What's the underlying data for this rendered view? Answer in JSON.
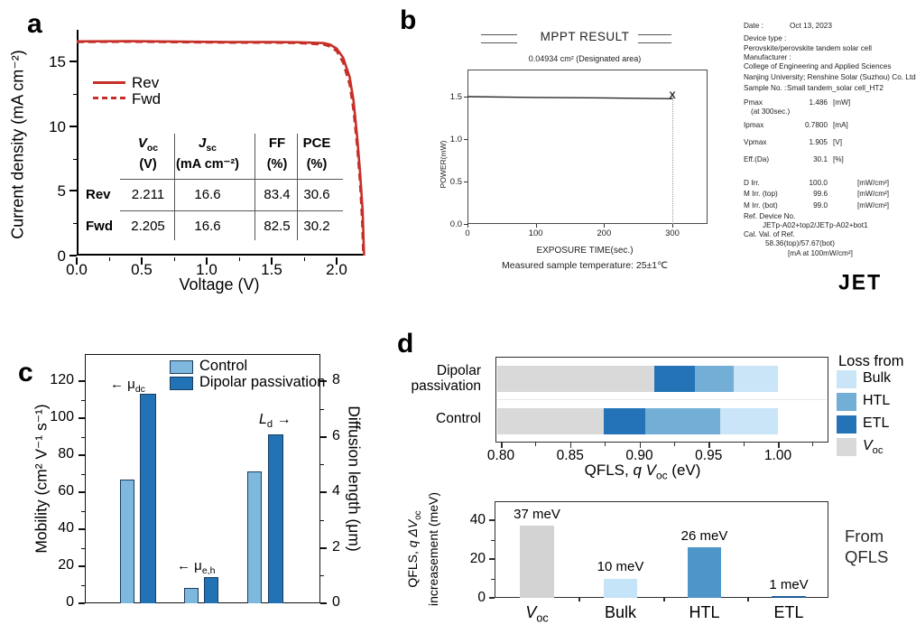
{
  "panels": {
    "a": {
      "label": "a",
      "xlabel": "Voltage (V)",
      "ylabel": "Current density (mA cm⁻²)",
      "curve_color": "#c62f28",
      "table": {
        "columns": [
          {
            "symbol": "V",
            "sub": "oc",
            "italic": true,
            "unit": "(V)"
          },
          {
            "symbol": "J",
            "sub": "sc",
            "italic": true,
            "unit": "(mA cm⁻²)"
          },
          {
            "symbol": "FF",
            "sub": "",
            "italic": false,
            "unit": "(%)"
          },
          {
            "symbol": "PCE",
            "sub": "",
            "italic": false,
            "unit": "(%)"
          }
        ],
        "rows": [
          {
            "name": "Rev",
            "values": [
              "2.211",
              "16.6",
              "83.4",
              "30.6"
            ]
          },
          {
            "name": "Fwd",
            "values": [
              "2.205",
              "16.6",
              "82.5",
              "30.2"
            ]
          }
        ]
      }
    },
    "b": {
      "label": "b",
      "title": "MPPT RESULT",
      "subtitle": "0.04934 cm² (Designated area)",
      "xlabel": "EXPOSURE TIME(sec.)",
      "ylabel": "POWER(mW)",
      "footnote": "Measured sample temperature: 25±1℃",
      "end_marker": "X",
      "logo": "JET",
      "info_lines": [
        {
          "label": "Date :",
          "value": "Oct 13, 2023"
        },
        {
          "label": "Device type :"
        },
        {
          "label": "Perovskite/perovskite tandem solar cell"
        },
        {
          "label": "Manufacturer :"
        },
        {
          "label": "College of Engineering and Applied Sciences"
        },
        {
          "label": "Nanjing University; Renshine Solar (Suzhou) Co. Ltd."
        },
        {
          "label": "Sample No. :",
          "value": "Small tandem_solar cell_HT2"
        },
        {
          "label": "Pmax",
          "value": "1.486",
          "unit": "[mW]"
        },
        {
          "label": "(at 300sec.)"
        },
        {
          "label": "Ipmax",
          "value": "0.7800",
          "unit": "[mA]"
        },
        {
          "label": "Vpmax",
          "value": "1.905",
          "unit": "[V]"
        },
        {
          "label": "Eff.(Da)",
          "value": "30.1",
          "unit": "[%]"
        },
        {
          "label": "D Irr.",
          "value": "100.0",
          "unit": "[mW/cm²]"
        },
        {
          "label": "M Irr. (top)",
          "value": "99.6",
          "unit": "[mW/cm²]"
        },
        {
          "label": "M Irr. (bot)",
          "value": "99.0",
          "unit": "[mW/cm²]"
        },
        {
          "label": "Ref. Device No."
        },
        {
          "label": "JETp-A02+top2/JETp-A02+bot1"
        },
        {
          "label": "Cal. Val. of Ref."
        },
        {
          "label": "58.36(top)/57.67(bot)"
        },
        {
          "label": "[mA at 100mW/cm²]"
        }
      ]
    },
    "c": {
      "label": "c",
      "ylabel_left": "Mobility (cm² V⁻¹ s⁻¹)",
      "ylabel_right": "Diffusion length (μm)",
      "annotations": {
        "mu_dc": {
          "arrow": "←",
          "base": "μ",
          "sub": "dc"
        },
        "mu_eh": {
          "arrow": "←",
          "base": "μ",
          "sub": "e,h"
        },
        "ld": {
          "base": "L",
          "sub": "d",
          "arrow": "→"
        }
      }
    },
    "d": {
      "label": "d",
      "top": {
        "cat_lines": [
          [
            "Dipolar",
            "passivation"
          ],
          [
            "Control"
          ]
        ],
        "xlabel": {
          "pre": "QFLS, ",
          "q": "q",
          "v": " V",
          "sub": "oc",
          "post": " (eV)"
        }
      },
      "bottom": {
        "ylabel_line1": {
          "pre": "QFLS, ",
          "ital": "q ΔV",
          "sub": "oc"
        },
        "ylabel_line2": "increasement (meV)",
        "annotation": [
          "From",
          "QFLS"
        ]
      }
    }
  },
  "chart_data": [
    {
      "id": "a-jv",
      "type": "line",
      "xlabel": "Voltage (V)",
      "ylabel": "Current density (mA cm⁻²)",
      "xlim": [
        0,
        2.22
      ],
      "ylim": [
        0,
        17.4
      ],
      "xticks": [
        0.0,
        0.5,
        1.0,
        1.5,
        2.0
      ],
      "yticks": [
        0,
        5,
        10,
        15
      ],
      "series": [
        {
          "name": "Rev",
          "style": "solid",
          "color": "#c62f28",
          "points": [
            [
              0,
              16.55
            ],
            [
              0.4,
              16.57
            ],
            [
              0.8,
              16.53
            ],
            [
              1.2,
              16.5
            ],
            [
              1.5,
              16.5
            ],
            [
              1.7,
              16.48
            ],
            [
              1.9,
              16.42
            ],
            [
              1.95,
              16.3
            ],
            [
              2.0,
              16.0
            ],
            [
              2.05,
              15.3
            ],
            [
              2.1,
              13.8
            ],
            [
              2.13,
              12.0
            ],
            [
              2.16,
              9.0
            ],
            [
              2.18,
              6.5
            ],
            [
              2.2,
              3.5
            ],
            [
              2.211,
              0
            ]
          ]
        },
        {
          "name": "Fwd",
          "style": "dashed",
          "color": "#c62f28",
          "points": [
            [
              0,
              16.5
            ],
            [
              0.4,
              16.52
            ],
            [
              0.8,
              16.48
            ],
            [
              1.2,
              16.45
            ],
            [
              1.5,
              16.45
            ],
            [
              1.7,
              16.42
            ],
            [
              1.9,
              16.3
            ],
            [
              1.95,
              16.15
            ],
            [
              2.0,
              15.8
            ],
            [
              2.05,
              14.9
            ],
            [
              2.1,
              13.2
            ],
            [
              2.13,
              11.2
            ],
            [
              2.16,
              8.2
            ],
            [
              2.18,
              5.6
            ],
            [
              2.195,
              2.8
            ],
            [
              2.205,
              0
            ]
          ]
        }
      ]
    },
    {
      "id": "b-mppt",
      "type": "line",
      "title": "MPPT RESULT",
      "subtitle": "0.04934 cm² (Designated area)",
      "xlabel": "EXPOSURE TIME(sec.)",
      "ylabel": "POWER(mW)",
      "xlim": [
        0,
        350
      ],
      "ylim": [
        0,
        1.82
      ],
      "xticks": [
        0,
        100,
        200,
        300
      ],
      "yticks": [
        0.0,
        0.5,
        1.0,
        1.5
      ],
      "series": [
        {
          "name": "POWER",
          "color": "#2b2b2b",
          "points": [
            [
              0,
              1.5
            ],
            [
              100,
              1.49
            ],
            [
              200,
              1.485
            ],
            [
              300,
              1.475
            ]
          ]
        }
      ],
      "end_marker_x": 300,
      "end_marker": "X"
    },
    {
      "id": "c-mobility",
      "type": "bar",
      "categories": [
        "μ_dc",
        "μ_e,h",
        "L_d"
      ],
      "ylabel_left": "Mobility (cm² V⁻¹ s⁻¹)",
      "ylabel_right": "Diffusion length (μm)",
      "ylim_left": [
        0,
        135
      ],
      "yticks_left": [
        0,
        20,
        40,
        60,
        80,
        100,
        120
      ],
      "yticks_right": [
        0,
        2,
        4,
        6,
        8
      ],
      "series": [
        {
          "name": "Control",
          "color": "#7fb8de",
          "values_left": [
            67,
            8.5,
            71
          ],
          "mobility": [
            67,
            8.5
          ],
          "diffusion_length_um": 4.7
        },
        {
          "name": "Dipolar passivation",
          "color": "#2273b6",
          "values_left": [
            113,
            14,
            91
          ],
          "mobility": [
            113,
            14
          ],
          "diffusion_length_um": 6.1
        }
      ]
    },
    {
      "id": "d-qfls-loss",
      "type": "stacked-bar-horizontal",
      "xlabel": "QFLS, q V_oc (eV)",
      "xlim": [
        0.787,
        1.036
      ],
      "xticks": [
        0.8,
        0.85,
        0.9,
        0.95,
        1.0
      ],
      "bars": [
        {
          "label": "Dipolar passivation",
          "segments": [
            {
              "name": "V_oc",
              "from": 0.8,
              "to": 0.911
            },
            {
              "name": "ETL",
              "from": 0.911,
              "to": 0.94
            },
            {
              "name": "HTL",
              "from": 0.94,
              "to": 0.968
            },
            {
              "name": "Bulk",
              "from": 0.968,
              "to": 1.0
            }
          ]
        },
        {
          "label": "Control",
          "segments": [
            {
              "name": "V_oc",
              "from": 0.8,
              "to": 0.874
            },
            {
              "name": "ETL",
              "from": 0.874,
              "to": 0.904
            },
            {
              "name": "HTL",
              "from": 0.904,
              "to": 0.958
            },
            {
              "name": "Bulk",
              "from": 0.958,
              "to": 1.0
            }
          ]
        }
      ],
      "colors": {
        "V_oc": "#d9d9d9",
        "ETL": "#2373b6",
        "HTL": "#73aed6",
        "Bulk": "#c9e5f7"
      },
      "legend": {
        "title": "Loss from",
        "items": [
          {
            "label": "Bulk",
            "color": "#c9e5f7"
          },
          {
            "label": "HTL",
            "color": "#73aed6"
          },
          {
            "label": "ETL",
            "color": "#2373b6"
          },
          {
            "label": "V",
            "sub": "oc",
            "italic": true,
            "color": "#d9d9d9"
          }
        ]
      }
    },
    {
      "id": "d-qfls-increase",
      "type": "bar",
      "categories": [
        "V_oc",
        "Bulk",
        "HTL",
        "ETL"
      ],
      "values_meV": [
        37,
        10,
        26,
        1
      ],
      "labels": [
        "37 meV",
        "10 meV",
        "26 meV",
        "1 meV"
      ],
      "colors": [
        "#d3d3d3",
        "#c6e4f8",
        "#4e96c8",
        "#1f5c99"
      ],
      "cat_display": [
        {
          "label": "V",
          "sub": "oc",
          "italic": true
        },
        {
          "label": "Bulk"
        },
        {
          "label": "HTL"
        },
        {
          "label": "ETL"
        }
      ],
      "ylim": [
        0,
        49
      ],
      "yticks": [
        0,
        20,
        40
      ],
      "annotation": "From QFLS"
    }
  ]
}
